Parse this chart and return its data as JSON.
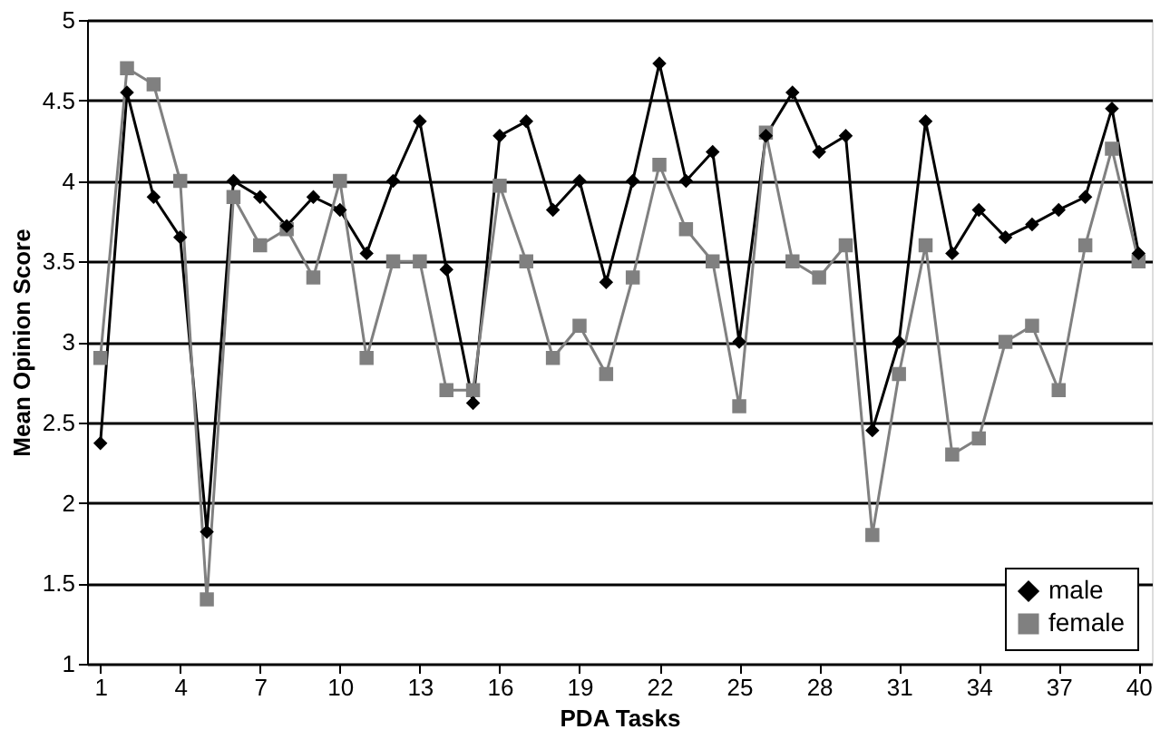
{
  "chart_data": {
    "type": "line",
    "xlabel": "PDA Tasks",
    "ylabel": "Mean Opinion Score",
    "x": [
      1,
      2,
      3,
      4,
      5,
      6,
      7,
      8,
      9,
      10,
      11,
      12,
      13,
      14,
      15,
      16,
      17,
      18,
      19,
      20,
      21,
      22,
      23,
      24,
      25,
      26,
      27,
      28,
      29,
      30,
      31,
      32,
      33,
      34,
      35,
      36,
      37,
      38,
      39,
      40
    ],
    "xlim": [
      0.5,
      40.5
    ],
    "xticks": [
      1,
      4,
      7,
      10,
      13,
      16,
      19,
      22,
      25,
      28,
      31,
      34,
      37,
      40
    ],
    "ylim": [
      1,
      5
    ],
    "yticks": [
      1,
      1.5,
      2,
      2.5,
      3,
      3.5,
      4,
      4.5,
      5
    ],
    "grid": "y",
    "legend": "bottom right",
    "series": [
      {
        "name": "male",
        "color": "#000000",
        "marker": "diamond",
        "values": [
          2.37,
          4.55,
          3.9,
          3.65,
          1.82,
          4.0,
          3.9,
          3.72,
          3.9,
          3.82,
          3.55,
          4.0,
          4.37,
          3.45,
          2.62,
          4.28,
          4.37,
          3.82,
          4.0,
          3.37,
          4.0,
          4.73,
          4.0,
          4.18,
          3.0,
          4.28,
          4.55,
          4.18,
          4.28,
          2.45,
          3.0,
          4.37,
          3.55,
          3.82,
          3.65,
          3.73,
          3.82,
          3.9,
          4.45,
          3.55
        ]
      },
      {
        "name": "female",
        "color": "#808080",
        "marker": "square",
        "values": [
          2.9,
          4.7,
          4.6,
          4.0,
          1.4,
          3.9,
          3.6,
          3.7,
          3.4,
          4.0,
          2.9,
          3.5,
          3.5,
          2.7,
          2.7,
          3.97,
          3.5,
          2.9,
          3.1,
          2.8,
          3.4,
          4.1,
          3.7,
          3.5,
          2.6,
          4.3,
          3.5,
          3.4,
          3.6,
          1.8,
          2.8,
          3.6,
          2.3,
          2.4,
          3.0,
          3.1,
          2.7,
          3.6,
          4.2,
          3.5
        ]
      }
    ]
  }
}
